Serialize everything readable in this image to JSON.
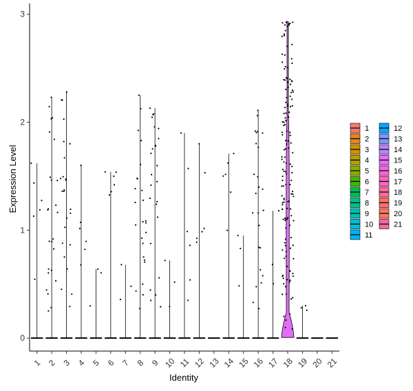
{
  "chart_data": {
    "type": "violin",
    "xlabel": "Identity",
    "ylabel": "Expression Level",
    "ylim": [
      -0.12,
      3.1
    ],
    "yticks": [
      0,
      1,
      2,
      3
    ],
    "grid": false,
    "legend_position": "right",
    "legend_columns": 2,
    "categories": [
      "1",
      "2",
      "3",
      "4",
      "5",
      "6",
      "7",
      "8",
      "9",
      "10",
      "11",
      "12",
      "13",
      "14",
      "15",
      "16",
      "17",
      "18",
      "19",
      "20",
      "21"
    ],
    "colors": [
      "#F8766D",
      "#E7851E",
      "#D09400",
      "#B2A100",
      "#89AC00",
      "#45B500",
      "#00BC51",
      "#00C087",
      "#00C0B2",
      "#00BCD6",
      "#00B3F2",
      "#00A6FF",
      "#7C96FF",
      "#B983FF",
      "#E26EF7",
      "#F863DF",
      "#FF62BF",
      "#FF6A9A",
      "#FF6C67",
      "#FF7565",
      "#F4689A"
    ],
    "max_values": [
      1.62,
      2.23,
      2.28,
      1.6,
      0.64,
      1.54,
      0.68,
      2.25,
      2.13,
      0.72,
      1.9,
      1.8,
      0.0,
      1.71,
      0.95,
      2.11,
      1.18,
      2.93,
      0.3,
      0.0,
      0.0
    ],
    "highlight_violin": {
      "category": "18",
      "color": "#E26EF7",
      "bulge_top": 0.26,
      "upper_band_top": 2.05
    }
  },
  "strings": {
    "xlabel": "Identity",
    "ylabel": "Expression Level",
    "yticks": [
      "0",
      "1",
      "2",
      "3"
    ],
    "legend": [
      "1",
      "2",
      "3",
      "4",
      "5",
      "6",
      "7",
      "8",
      "9",
      "10",
      "11",
      "12",
      "13",
      "14",
      "15",
      "16",
      "17",
      "18",
      "19",
      "20",
      "21"
    ]
  }
}
